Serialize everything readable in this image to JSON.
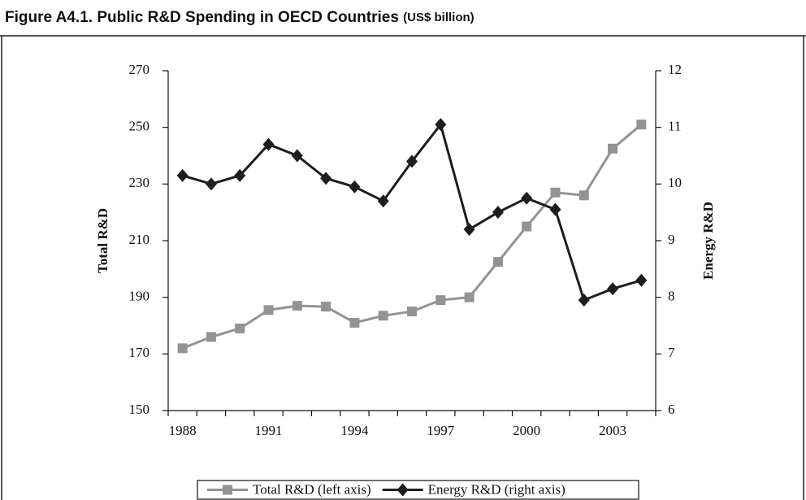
{
  "chart_data": {
    "type": "line",
    "title": "Figure A4.1.  Public R&D Spending in OECD Countries",
    "subtitle": "(US$ billion)",
    "categories": [
      "1988",
      null,
      null,
      "1991",
      null,
      null,
      "1994",
      null,
      null,
      "1997",
      null,
      null,
      "2000",
      null,
      null,
      "2003",
      null
    ],
    "series": [
      {
        "name": "Total R&D (left axis)",
        "color": "#939393",
        "marker": "square",
        "values": [
          172,
          176,
          179,
          185.5,
          187,
          186.7,
          181,
          183.5,
          185,
          189,
          190,
          202.5,
          215,
          227,
          226,
          242.5,
          251
        ]
      },
      {
        "name": "Energy R&D (right axis)",
        "color": "#1e1e1e",
        "marker": "diamond",
        "axis": "y2",
        "values": [
          10.15,
          10.0,
          10.15,
          10.7,
          10.5,
          10.1,
          9.95,
          9.7,
          10.4,
          11.05,
          9.2,
          9.5,
          9.75,
          9.55,
          7.95,
          8.15,
          8.3
        ]
      }
    ],
    "ylabel": "Total R&D",
    "y2label": "Energy R&D",
    "ylim": [
      150,
      270
    ],
    "yticks": [
      150,
      170,
      190,
      210,
      230,
      250,
      270
    ],
    "y2lim": [
      6,
      12
    ],
    "y2ticks": [
      6,
      7,
      8,
      9,
      10,
      11,
      12
    ],
    "legend": "bottom"
  }
}
